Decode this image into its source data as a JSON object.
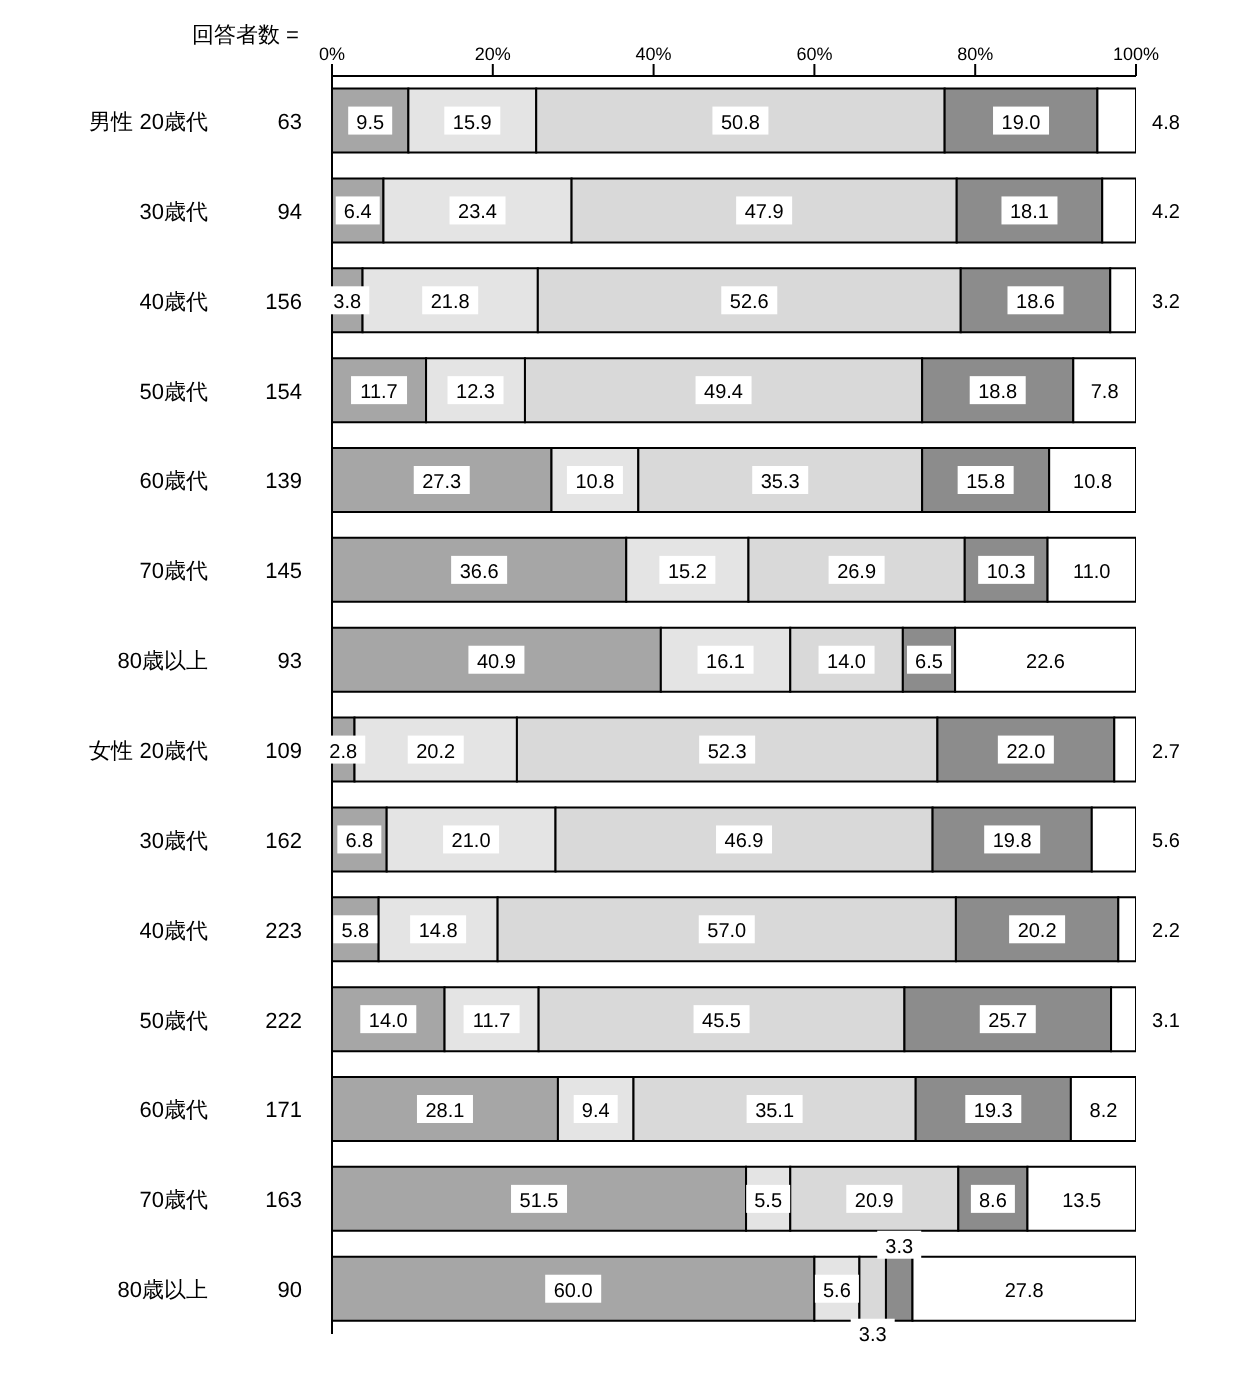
{
  "chart_data": {
    "type": "bar",
    "orientation": "horizontal",
    "stacked": true,
    "categories": [
      "男性 20歳代",
      "30歳代",
      "40歳代",
      "50歳代",
      "60歳代",
      "70歳代",
      "80歳以上",
      "女性 20歳代",
      "30歳代",
      "40歳代",
      "50歳代",
      "60歳代",
      "70歳代",
      "80歳以上"
    ],
    "series": [
      {
        "color": "#a6a6a6",
        "values": [
          9.5,
          6.4,
          3.8,
          11.7,
          27.3,
          36.6,
          40.9,
          2.8,
          6.8,
          5.8,
          14.0,
          28.1,
          51.5,
          60.0
        ],
        "value_labels": [
          "9.5",
          "6.4",
          "3.8",
          "11.7",
          "27.3",
          "36.6",
          "40.9",
          "2.8",
          "6.8",
          "5.8",
          "14.0",
          "28.1",
          "51.5",
          "60.0"
        ]
      },
      {
        "color": "#e4e4e4",
        "values": [
          15.9,
          23.4,
          21.8,
          12.3,
          10.8,
          15.2,
          16.1,
          20.2,
          21.0,
          14.8,
          11.7,
          9.4,
          5.5,
          5.6
        ],
        "value_labels": [
          "15.9",
          "23.4",
          "21.8",
          "12.3",
          "10.8",
          "15.2",
          "16.1",
          "20.2",
          "21.0",
          "14.8",
          "11.7",
          "9.4",
          "5.5",
          "5.6"
        ]
      },
      {
        "color": "#d9d9d9",
        "values": [
          50.8,
          47.9,
          52.6,
          49.4,
          35.3,
          26.9,
          14.0,
          52.3,
          46.9,
          57.0,
          45.5,
          35.1,
          20.9,
          3.3
        ],
        "value_labels": [
          "50.8",
          "47.9",
          "52.6",
          "49.4",
          "35.3",
          "26.9",
          "14.0",
          "52.3",
          "46.9",
          "57.0",
          "45.5",
          "35.1",
          "20.9",
          "3.3"
        ]
      },
      {
        "color": "#8c8c8c",
        "values": [
          19.0,
          18.1,
          18.6,
          18.8,
          15.8,
          10.3,
          6.5,
          22.0,
          19.8,
          20.2,
          25.7,
          19.3,
          8.6,
          3.3
        ],
        "value_labels": [
          "19.0",
          "18.1",
          "18.6",
          "18.8",
          "15.8",
          "10.3",
          "6.5",
          "22.0",
          "19.8",
          "20.2",
          "25.7",
          "19.3",
          "8.6",
          "3.3"
        ]
      },
      {
        "color": "#ffffff",
        "values": [
          4.8,
          4.2,
          3.2,
          7.8,
          10.8,
          11.0,
          22.6,
          2.7,
          5.6,
          2.2,
          3.1,
          8.2,
          13.5,
          27.8
        ],
        "value_labels": [
          "4.8",
          "4.2",
          "3.2",
          "7.8",
          "10.8",
          "11.0",
          "22.6",
          "2.7",
          "5.6",
          "2.2",
          "3.1",
          "8.2",
          "13.5",
          "27.8"
        ]
      }
    ],
    "xlim": [
      0,
      100
    ],
    "xticks": [
      {
        "value": 0,
        "label": "0%"
      },
      {
        "value": 20,
        "label": "20%"
      },
      {
        "value": 40,
        "label": "40%"
      },
      {
        "value": 60,
        "label": "60%"
      },
      {
        "value": 80,
        "label": "80%"
      },
      {
        "value": 100,
        "label": "100%"
      }
    ],
    "annotations": [
      "回答者数 =",
      "63",
      "94",
      "156",
      "154",
      "139",
      "145",
      "93",
      "109",
      "162",
      "223",
      "222",
      "171",
      "163",
      "90"
    ]
  }
}
